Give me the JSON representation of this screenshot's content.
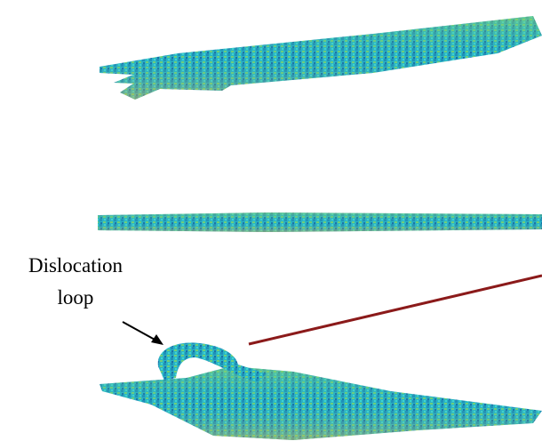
{
  "annotation": {
    "lines": [
      "Dislocation",
      "loop"
    ]
  }
}
